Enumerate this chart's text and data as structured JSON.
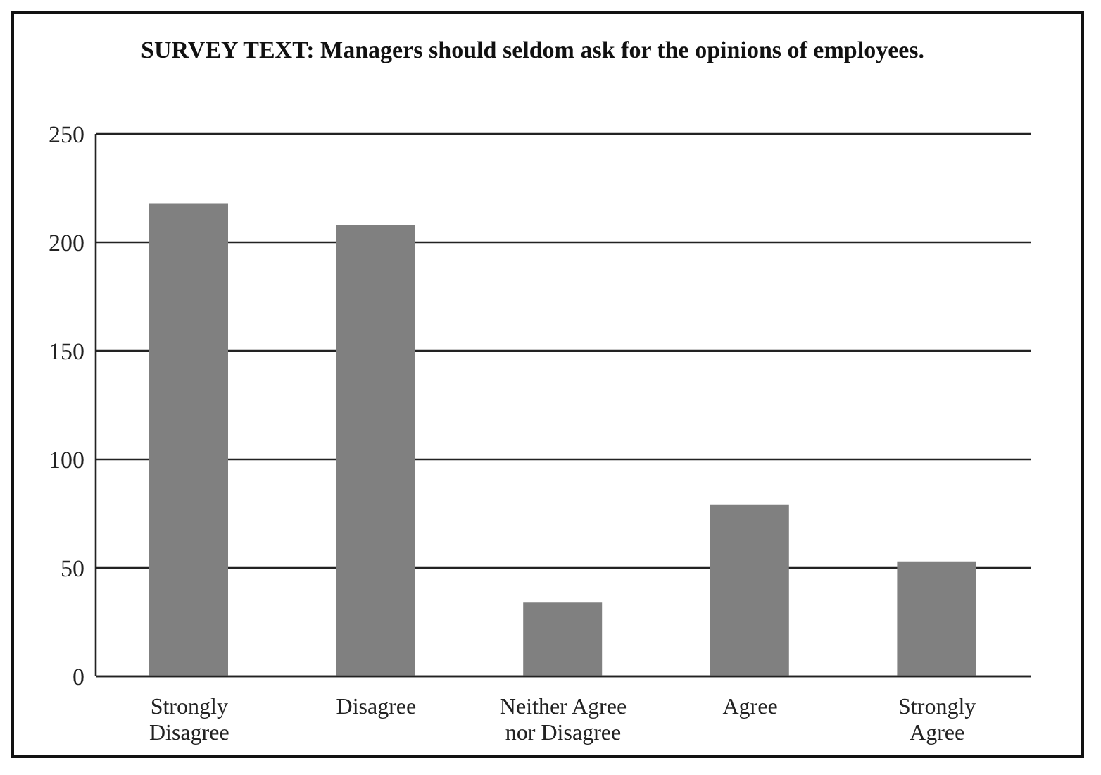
{
  "chart_data": {
    "type": "bar",
    "title": "SURVEY TEXT: Managers should seldom ask for the opinions of employees.",
    "categories": [
      "Strongly Disagree",
      "Disagree",
      "Neither Agree nor Disagree",
      "Agree",
      "Strongly Agree"
    ],
    "values": [
      218,
      208,
      34,
      79,
      53
    ],
    "color": "#808080",
    "ylim": [
      0,
      250
    ],
    "yticks": [
      0,
      50,
      100,
      150,
      200,
      250
    ],
    "grid": "y"
  }
}
